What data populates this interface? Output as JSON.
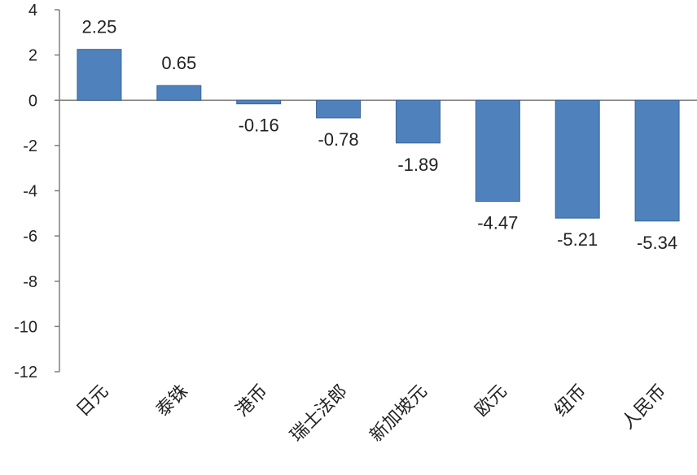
{
  "chart_data": {
    "type": "bar",
    "title": "",
    "xlabel": "",
    "ylabel": "",
    "categories": [
      "日元",
      "泰铢",
      "港币",
      "瑞士法郎",
      "新加坡元",
      "欧元",
      "纽币",
      "人民币"
    ],
    "values": [
      2.25,
      0.65,
      -0.16,
      -0.78,
      -1.89,
      -4.47,
      -5.21,
      -5.34
    ],
    "data_labels": [
      "2.25",
      "0.65",
      "-0.16",
      "-0.78",
      "-1.89",
      "-4.47",
      "-5.21",
      "-5.34"
    ],
    "ylim": [
      -12,
      4
    ],
    "yticks": [
      4,
      2,
      0,
      -2,
      -4,
      -6,
      -8,
      -10,
      -12
    ],
    "grid": false,
    "legend": "none",
    "bar_color": "#4F81BD",
    "bar_edge_color": "#3A6595",
    "axis_color": "#7F7F7F"
  }
}
